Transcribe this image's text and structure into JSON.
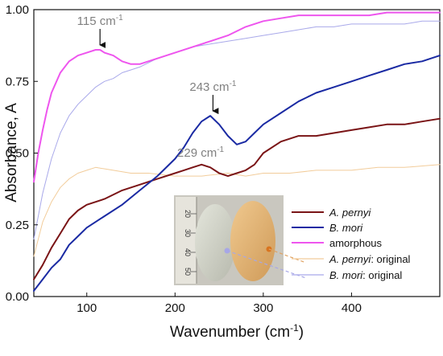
{
  "chart_data": {
    "type": "line",
    "title": "",
    "xlabel": "Wavenumber (cm",
    "xlabel_sup": "-1",
    "xlabel_end": ")",
    "ylabel": "Absorbance, A",
    "xlim": [
      40,
      500
    ],
    "ylim": [
      0,
      1
    ],
    "xticks": [
      "100",
      "200",
      "300",
      "400"
    ],
    "xtick_values": [
      100,
      200,
      300,
      400
    ],
    "yticks": [
      "0.00",
      "0.25",
      "0.50",
      "0.75",
      "1.00"
    ],
    "ytick_values": [
      0,
      0.25,
      0.5,
      0.75,
      1.0
    ],
    "grid": false,
    "legend_placement": "bottom-right",
    "series": [
      {
        "name_italic": "A. pernyi",
        "name_rest": "",
        "color": "#7a1416",
        "width": 2,
        "x": [
          40,
          50,
          60,
          70,
          80,
          90,
          100,
          120,
          140,
          160,
          180,
          200,
          210,
          220,
          230,
          240,
          250,
          260,
          270,
          280,
          290,
          300,
          320,
          340,
          360,
          380,
          400,
          420,
          440,
          460,
          480,
          500
        ],
        "y": [
          0.06,
          0.11,
          0.17,
          0.22,
          0.27,
          0.3,
          0.32,
          0.34,
          0.37,
          0.39,
          0.41,
          0.43,
          0.44,
          0.45,
          0.46,
          0.45,
          0.43,
          0.42,
          0.43,
          0.44,
          0.46,
          0.5,
          0.54,
          0.56,
          0.56,
          0.57,
          0.58,
          0.59,
          0.6,
          0.6,
          0.61,
          0.62
        ]
      },
      {
        "name_italic": "B. mori",
        "name_rest": "",
        "color": "#1a2aa3",
        "width": 2,
        "x": [
          40,
          50,
          60,
          70,
          80,
          90,
          100,
          120,
          140,
          160,
          180,
          200,
          210,
          220,
          230,
          240,
          250,
          260,
          270,
          280,
          290,
          300,
          320,
          340,
          360,
          380,
          400,
          420,
          440,
          460,
          480,
          500
        ],
        "y": [
          0.02,
          0.06,
          0.1,
          0.13,
          0.18,
          0.21,
          0.24,
          0.28,
          0.32,
          0.37,
          0.42,
          0.48,
          0.52,
          0.57,
          0.61,
          0.63,
          0.6,
          0.56,
          0.53,
          0.54,
          0.57,
          0.6,
          0.64,
          0.68,
          0.71,
          0.73,
          0.75,
          0.77,
          0.79,
          0.81,
          0.82,
          0.84
        ]
      },
      {
        "name_italic": "",
        "name_rest": "amorphous",
        "color": "#ee55ee",
        "width": 2,
        "x": [
          40,
          45,
          50,
          55,
          60,
          70,
          80,
          90,
          100,
          110,
          115,
          120,
          130,
          140,
          150,
          160,
          180,
          200,
          220,
          240,
          260,
          280,
          300,
          320,
          340,
          360,
          380,
          400,
          420,
          440,
          460,
          480,
          500
        ],
        "y": [
          0.4,
          0.5,
          0.58,
          0.65,
          0.71,
          0.78,
          0.82,
          0.84,
          0.85,
          0.86,
          0.86,
          0.85,
          0.84,
          0.82,
          0.81,
          0.81,
          0.83,
          0.85,
          0.87,
          0.89,
          0.91,
          0.94,
          0.96,
          0.97,
          0.98,
          0.98,
          0.98,
          0.98,
          0.98,
          0.99,
          0.99,
          0.99,
          0.99
        ]
      },
      {
        "name_italic": "A. pernyi",
        "name_rest": ": original",
        "color": "#f2cc9a",
        "width": 1,
        "x": [
          40,
          50,
          60,
          70,
          80,
          90,
          100,
          110,
          130,
          150,
          170,
          200,
          230,
          260,
          280,
          300,
          330,
          360,
          400,
          430,
          460,
          500
        ],
        "y": [
          0.14,
          0.26,
          0.33,
          0.38,
          0.41,
          0.43,
          0.44,
          0.45,
          0.44,
          0.43,
          0.43,
          0.42,
          0.42,
          0.43,
          0.42,
          0.43,
          0.43,
          0.44,
          0.44,
          0.45,
          0.45,
          0.46
        ]
      },
      {
        "name_italic": "B. mori",
        "name_rest": ": original",
        "color": "#a9a9ea",
        "width": 1,
        "x": [
          40,
          50,
          60,
          70,
          80,
          90,
          100,
          110,
          120,
          130,
          140,
          150,
          160,
          180,
          200,
          220,
          240,
          260,
          280,
          300,
          320,
          340,
          360,
          380,
          400,
          420,
          440,
          460,
          480,
          500
        ],
        "y": [
          0.2,
          0.36,
          0.48,
          0.57,
          0.63,
          0.67,
          0.7,
          0.73,
          0.75,
          0.76,
          0.78,
          0.79,
          0.8,
          0.83,
          0.85,
          0.87,
          0.88,
          0.89,
          0.9,
          0.91,
          0.92,
          0.93,
          0.94,
          0.94,
          0.95,
          0.95,
          0.95,
          0.95,
          0.96,
          0.96
        ]
      }
    ],
    "annotations": [
      {
        "label": "115 cm",
        "sup": "-1",
        "x": 115,
        "y": 0.86
      },
      {
        "label": "243 cm",
        "sup": "-1",
        "x": 243,
        "y": 0.63
      },
      {
        "label": "229 cm",
        "sup": "-1",
        "x": 229,
        "y": 0.46
      }
    ],
    "inset_ruler_labels": [
      "20",
      "30",
      "40",
      "50"
    ]
  }
}
